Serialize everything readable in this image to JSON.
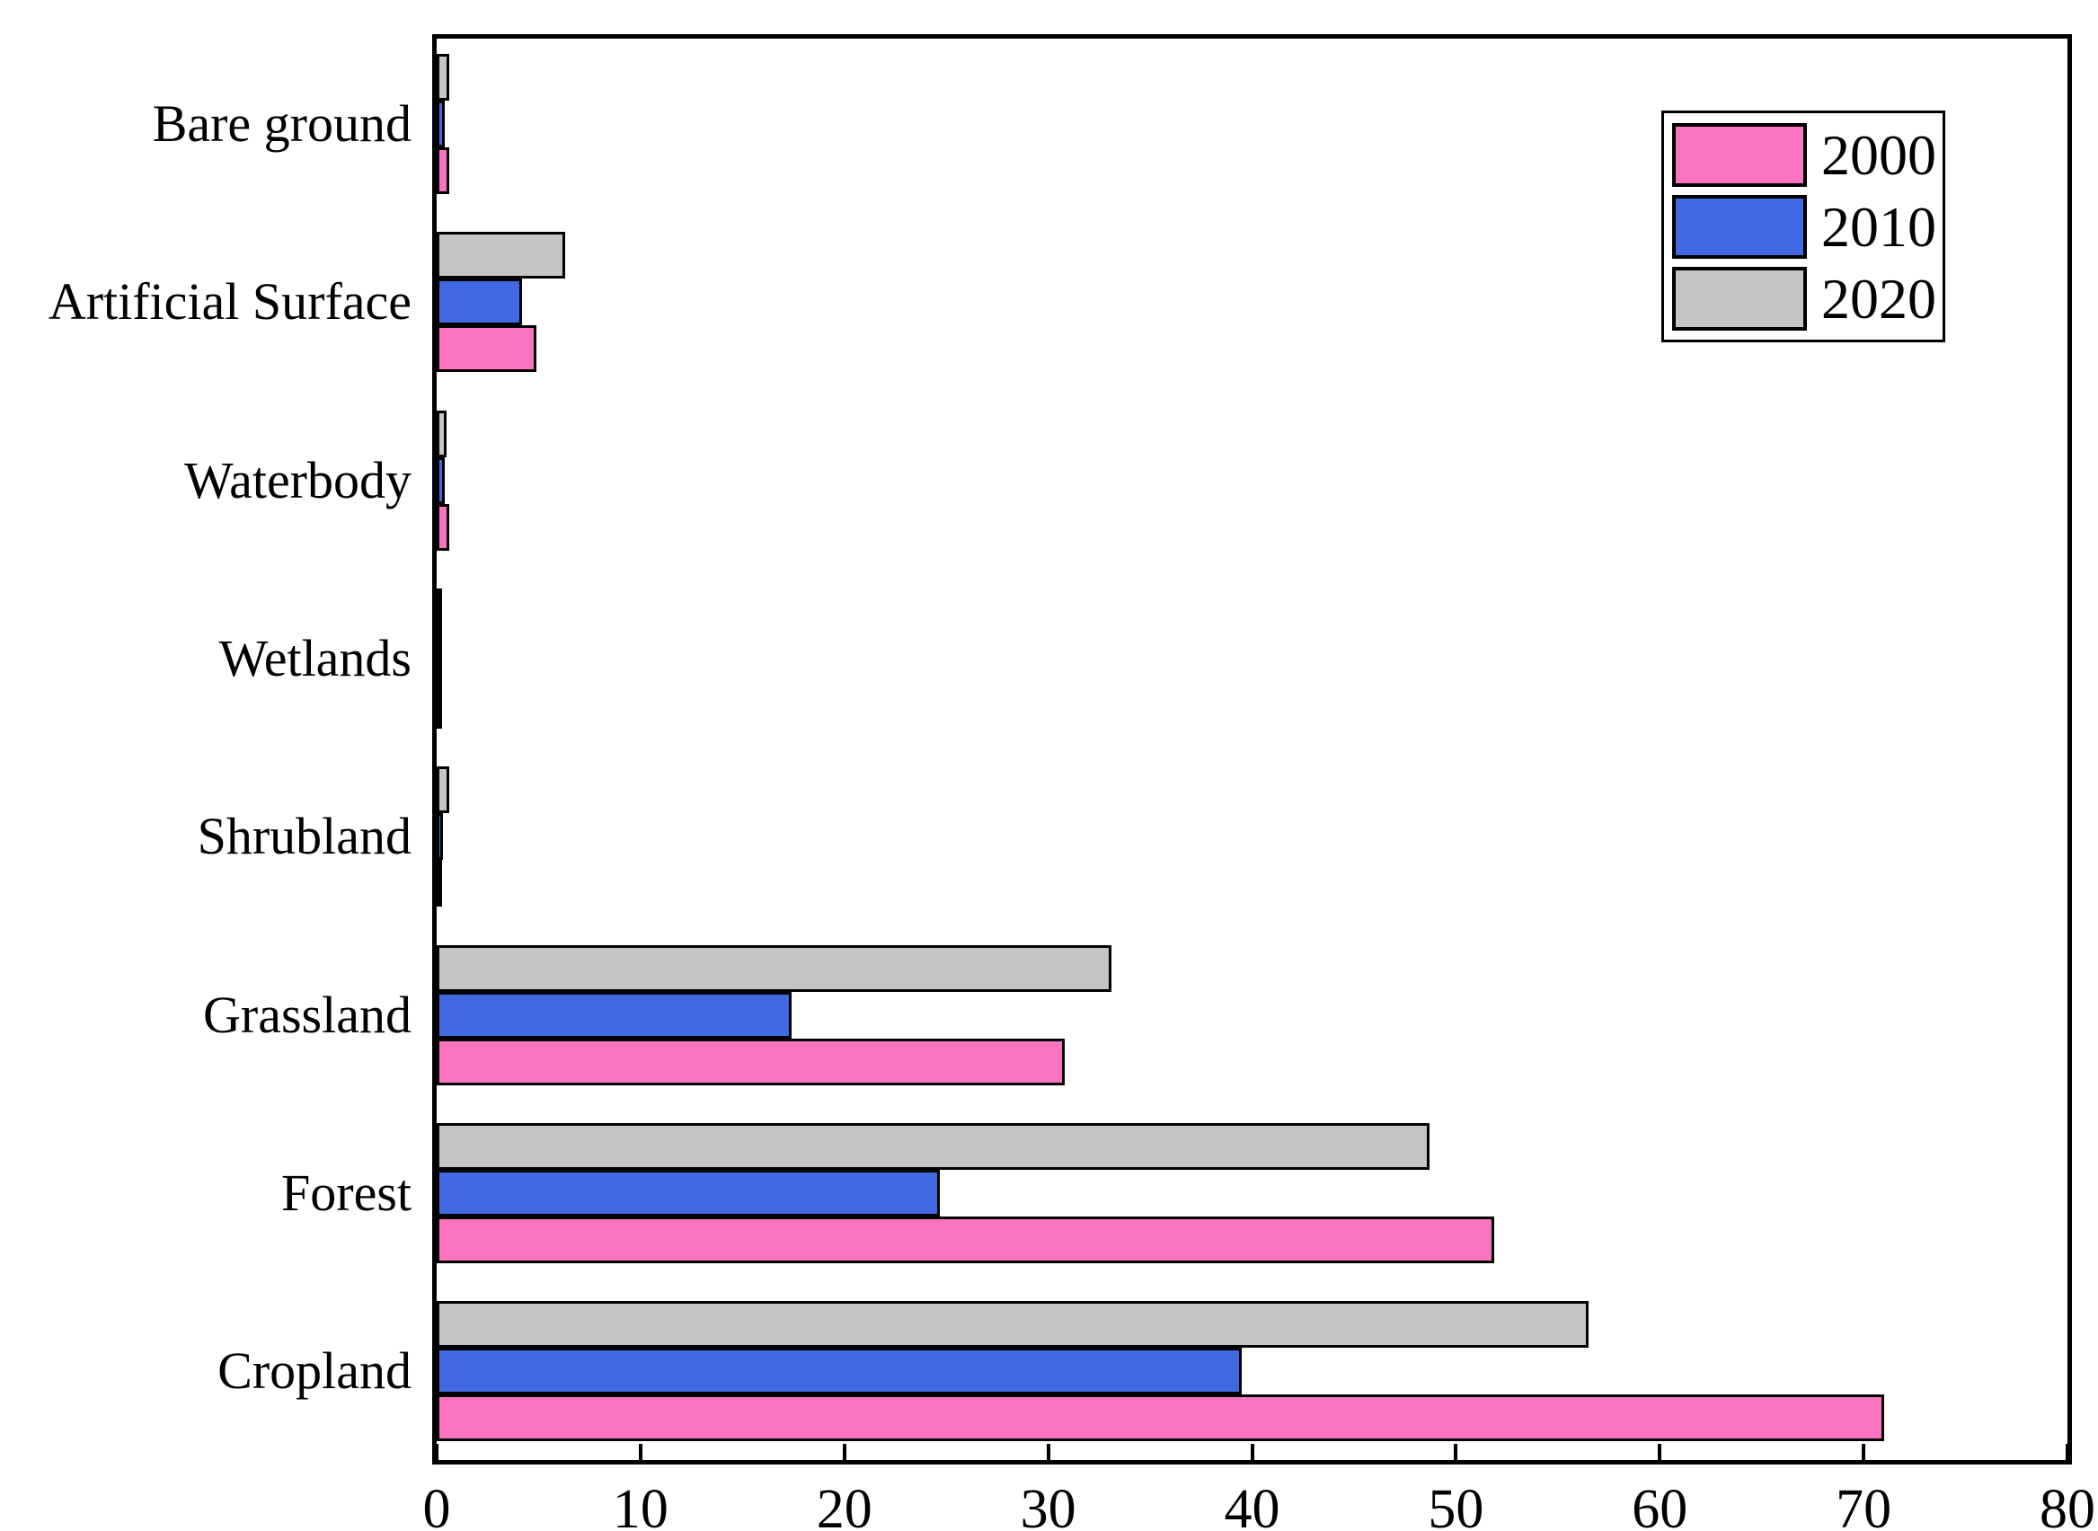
{
  "chart_data": {
    "type": "bar",
    "orientation": "horizontal",
    "title": "",
    "xlabel": "",
    "ylabel": "",
    "categories_top_to_bottom": [
      "Bare ground",
      "Artificial Surface",
      "Waterbody",
      "Wetlands",
      "Shrubland",
      "Grassland",
      "Forest",
      "Cropland"
    ],
    "series": [
      {
        "name": "2000",
        "color": "#FA74C0",
        "values": [
          0.6,
          4.9,
          0.6,
          0.1,
          0.2,
          30.8,
          51.9,
          71.0
        ]
      },
      {
        "name": "2010",
        "color": "#4169E1",
        "values": [
          0.4,
          4.2,
          0.4,
          0.1,
          0.3,
          17.4,
          24.7,
          39.5
        ]
      },
      {
        "name": "2020",
        "color": "#C5C5C5",
        "values": [
          0.6,
          6.3,
          0.5,
          0.2,
          0.6,
          33.1,
          48.7,
          56.5
        ]
      }
    ],
    "group_bar_order_top_to_bottom": [
      "2020",
      "2010",
      "2000"
    ],
    "xlim": [
      0,
      80
    ],
    "x_ticks": [
      0,
      10,
      20,
      30,
      40,
      50,
      60,
      70,
      80
    ],
    "grid": false,
    "frame": true,
    "bar_outline_color": "#000000",
    "legend_position": "top-right",
    "legend_entries": [
      "2000",
      "2010",
      "2020"
    ]
  }
}
